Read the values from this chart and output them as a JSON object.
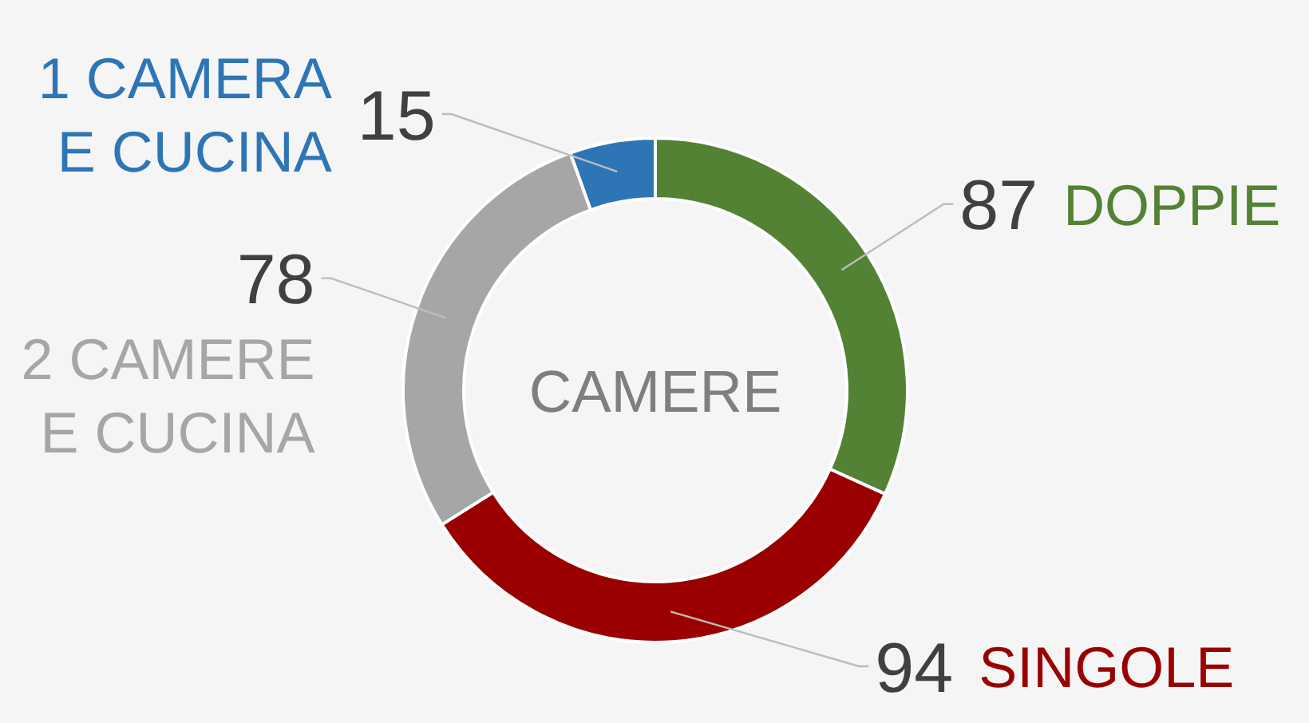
{
  "chart_data": {
    "type": "donut",
    "title": "CAMERE",
    "categories": [
      "DOPPIE",
      "SINGOLE",
      "2 CAMERE E CUCINA",
      "1 CAMERA E CUCINA"
    ],
    "values": [
      87,
      94,
      78,
      15
    ],
    "colors": [
      "#548235",
      "#9a0000",
      "#a6a6a6",
      "#2e75b6"
    ],
    "data_labels": true
  }
}
